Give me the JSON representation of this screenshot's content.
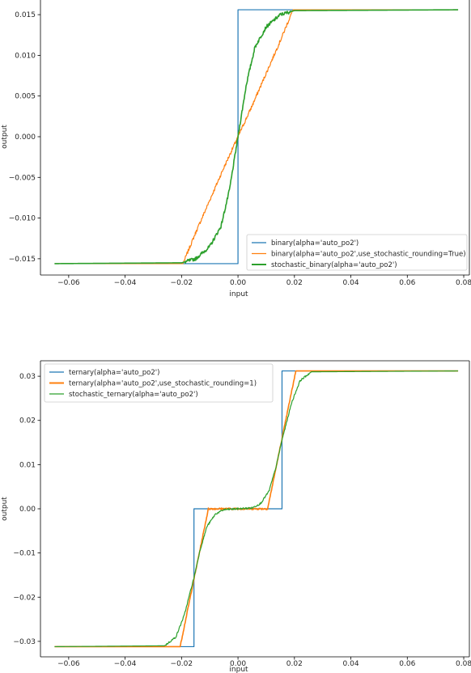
{
  "chart_data": [
    {
      "type": "line",
      "title": "",
      "xlabel": "input",
      "ylabel": "output",
      "xlim": [
        -0.07,
        0.082
      ],
      "ylim": [
        -0.017,
        0.017
      ],
      "xticks": [
        -0.06,
        -0.04,
        -0.02,
        0.0,
        0.02,
        0.04,
        0.06,
        0.08
      ],
      "xtick_labels": [
        "−0.06",
        "−0.04",
        "−0.02",
        "0.00",
        "0.02",
        "0.04",
        "0.06",
        "0.08"
      ],
      "yticks": [
        -0.015,
        -0.01,
        -0.005,
        0.0,
        0.005,
        0.01,
        0.015
      ],
      "ytick_labels": [
        "−0.015",
        "−0.010",
        "−0.005",
        "0.000",
        "0.005",
        "0.010",
        "0.015"
      ],
      "grid": false,
      "legend_position": "bottom-right",
      "series": [
        {
          "name": "binary(alpha='auto_po2')",
          "color": "#1f77b4",
          "x": [
            -0.065,
            0.0,
            0.0,
            0.078
          ],
          "y": [
            -0.0156,
            -0.0156,
            0.0156,
            0.0156
          ]
        },
        {
          "name": "binary(alpha='auto_po2',use_stochastic_rounding=True)",
          "color": "#ff7f0e",
          "x": [
            -0.065,
            -0.0195,
            -0.015,
            -0.01,
            -0.005,
            0.0,
            0.005,
            0.01,
            0.015,
            0.0195,
            0.078
          ],
          "y": [
            -0.0156,
            -0.0156,
            -0.0118,
            -0.0078,
            -0.0038,
            0.0,
            0.0038,
            0.0078,
            0.0118,
            0.0156,
            0.0156
          ]
        },
        {
          "name": "stochastic_binary(alpha='auto_po2')",
          "color": "#2ca02c",
          "x": [
            -0.065,
            -0.02,
            -0.015,
            -0.01,
            -0.006,
            -0.003,
            0.0,
            0.003,
            0.006,
            0.01,
            0.015,
            0.02,
            0.078
          ],
          "y": [
            -0.0156,
            -0.0155,
            -0.015,
            -0.0135,
            -0.011,
            -0.0065,
            0.0,
            0.0065,
            0.011,
            0.0135,
            0.015,
            0.0155,
            0.0156
          ]
        }
      ]
    },
    {
      "type": "line",
      "title": "",
      "xlabel": "input",
      "ylabel": "output",
      "xlim": [
        -0.07,
        0.082
      ],
      "ylim": [
        -0.0335,
        0.0335
      ],
      "xticks": [
        -0.06,
        -0.04,
        -0.02,
        0.0,
        0.02,
        0.04,
        0.06,
        0.08
      ],
      "xtick_labels": [
        "−0.06",
        "−0.04",
        "−0.02",
        "0.00",
        "0.02",
        "0.04",
        "0.06",
        "0.08"
      ],
      "yticks": [
        -0.03,
        -0.02,
        -0.01,
        0.0,
        0.01,
        0.02,
        0.03
      ],
      "ytick_labels": [
        "−0.03",
        "−0.02",
        "−0.01",
        "0.00",
        "0.01",
        "0.02",
        "0.03"
      ],
      "grid": false,
      "legend_position": "top-left",
      "series": [
        {
          "name": "ternary(alpha='auto_po2')",
          "color": "#1f77b4",
          "x": [
            -0.065,
            -0.0156,
            -0.0156,
            0.0156,
            0.0156,
            0.078
          ],
          "y": [
            -0.0312,
            -0.0312,
            0.0,
            0.0,
            0.0312,
            0.0312
          ]
        },
        {
          "name": "ternary(alpha='auto_po2',use_stochastic_rounding=1)",
          "color": "#ff7f0e",
          "x": [
            -0.065,
            -0.0205,
            -0.0105,
            0.0105,
            0.0205,
            0.078
          ],
          "y": [
            -0.0312,
            -0.0312,
            0.0,
            0.0,
            0.0312,
            0.0312
          ]
        },
        {
          "name": "stochastic_ternary(alpha='auto_po2')",
          "color": "#2ca02c",
          "x": [
            -0.065,
            -0.026,
            -0.022,
            -0.019,
            -0.017,
            -0.0156,
            -0.0135,
            -0.011,
            -0.008,
            -0.005,
            0.0,
            0.005,
            0.008,
            0.011,
            0.0135,
            0.0156,
            0.017,
            0.019,
            0.022,
            0.026,
            0.078
          ],
          "y": [
            -0.0312,
            -0.031,
            -0.029,
            -0.024,
            -0.019,
            -0.0156,
            -0.0095,
            -0.004,
            -0.0012,
            -0.0002,
            0.0,
            0.0002,
            0.0012,
            0.004,
            0.0095,
            0.0156,
            0.019,
            0.024,
            0.029,
            0.031,
            0.0312
          ]
        }
      ]
    }
  ]
}
